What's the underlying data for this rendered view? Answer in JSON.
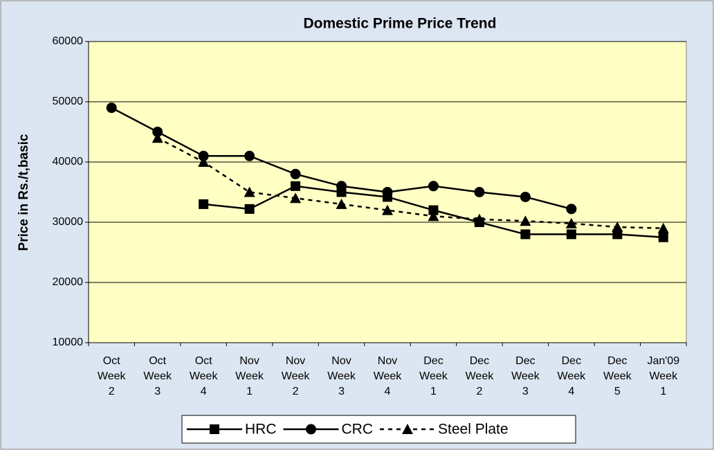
{
  "chart_data": {
    "type": "line",
    "title": "Domestic Prime Price Trend",
    "y_label": "Price in Rs./t,basic",
    "categories": [
      "Oct Week 2",
      "Oct Week 3",
      "Oct Week 4",
      "Nov Week 1",
      "Nov Week 2",
      "Nov Week 3",
      "Nov Week 4",
      "Dec Week 1",
      "Dec Week 2",
      "Dec Week 3",
      "Dec Week 4",
      "Dec Week 5",
      "Jan'09 Week 1"
    ],
    "series": [
      {
        "name": "HRC",
        "color": "#000000",
        "marker": "square",
        "line_style": "solid",
        "values": [
          null,
          null,
          33000,
          32200,
          36000,
          35000,
          34200,
          32000,
          30000,
          28000,
          28000,
          28000,
          27500
        ]
      },
      {
        "name": "CRC",
        "color": "#000000",
        "marker": "circle",
        "line_style": "solid",
        "values": [
          49000,
          45000,
          41000,
          41000,
          38000,
          36000,
          35000,
          36000,
          35000,
          34200,
          32200,
          null,
          null
        ]
      },
      {
        "name": "Steel Plate",
        "color": "#000000",
        "marker": "triangle",
        "line_style": "dashed",
        "values": [
          null,
          44000,
          40000,
          35000,
          34000,
          33000,
          32000,
          31000,
          30500,
          30200,
          29800,
          29200,
          29000
        ]
      }
    ],
    "ylim": [
      10000,
      60000
    ],
    "yticks": [
      10000,
      20000,
      30000,
      40000,
      50000,
      60000
    ],
    "grid": true
  }
}
